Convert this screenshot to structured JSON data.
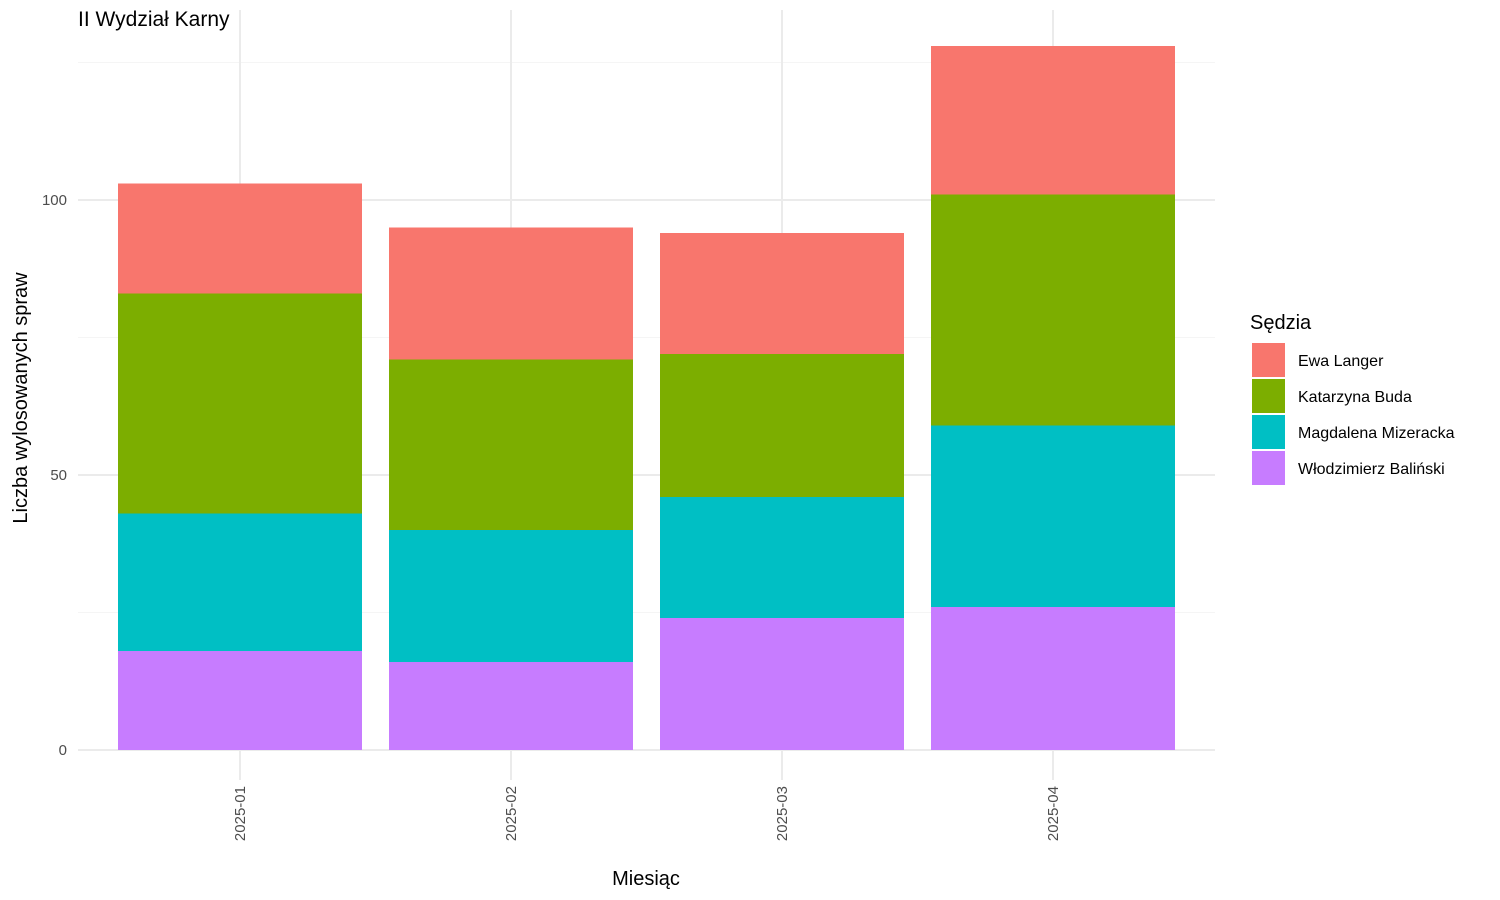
{
  "chart_data": {
    "type": "bar",
    "stacked": true,
    "title": "II Wydział Karny",
    "xlabel": "Miesiąc",
    "ylabel": "Liczba wylosowanych spraw",
    "categories": [
      "2025-01",
      "2025-02",
      "2025-03",
      "2025-04"
    ],
    "ylim": [
      0,
      130
    ],
    "yticks": [
      0,
      50,
      100
    ],
    "grid": true,
    "legend": {
      "title": "Sędzia",
      "placement": "right"
    },
    "series": [
      {
        "name": "Włodzimierz Baliński",
        "color": "#C77CFF",
        "values": [
          18,
          16,
          24,
          26
        ]
      },
      {
        "name": "Magdalena Mizeracka",
        "color": "#00BFC4",
        "values": [
          25,
          24,
          22,
          33
        ]
      },
      {
        "name": "Katarzyna Buda",
        "color": "#7CAE00",
        "values": [
          40,
          31,
          26,
          42
        ]
      },
      {
        "name": "Ewa Langer",
        "color": "#F8766D",
        "values": [
          20,
          24,
          22,
          27
        ]
      }
    ]
  }
}
